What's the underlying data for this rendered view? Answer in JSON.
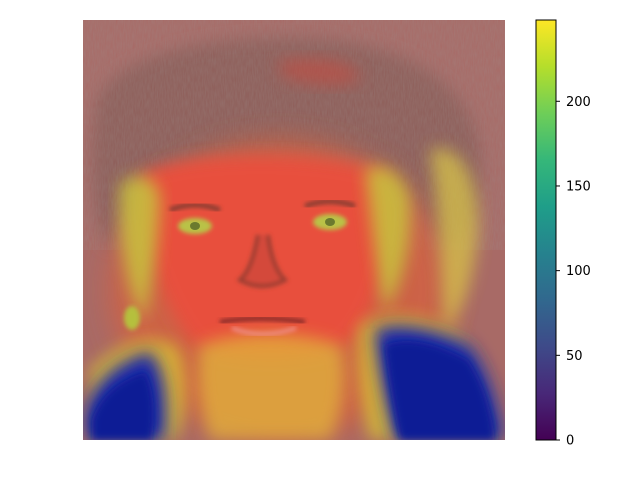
{
  "chart_data": {
    "type": "heatmap",
    "title": "",
    "xlabel": "",
    "ylabel": "",
    "axes_visible": false,
    "description_of_visual": "Saliency / attention heatmap overlaid on a grayscale face photograph",
    "colormap": "viridis",
    "overlay_colormap": "jet",
    "colorbar": {
      "range": [
        0,
        248
      ],
      "ticks": [
        0,
        50,
        100,
        150,
        200
      ],
      "tick_labels": [
        "0",
        "50",
        "100",
        "150",
        "200"
      ],
      "stops": [
        "#440154",
        "#482878",
        "#3e4a89",
        "#31688e",
        "#26828e",
        "#1f9e89",
        "#35b779",
        "#6ece58",
        "#b5de2b",
        "#fde725"
      ]
    },
    "regions": [
      {
        "name": "hair",
        "level": "low-moderate"
      },
      {
        "name": "face",
        "level": "high"
      },
      {
        "name": "eyes",
        "level": "moderate"
      },
      {
        "name": "shoulders",
        "level": "very-low"
      },
      {
        "name": "neck",
        "level": "high"
      }
    ]
  }
}
